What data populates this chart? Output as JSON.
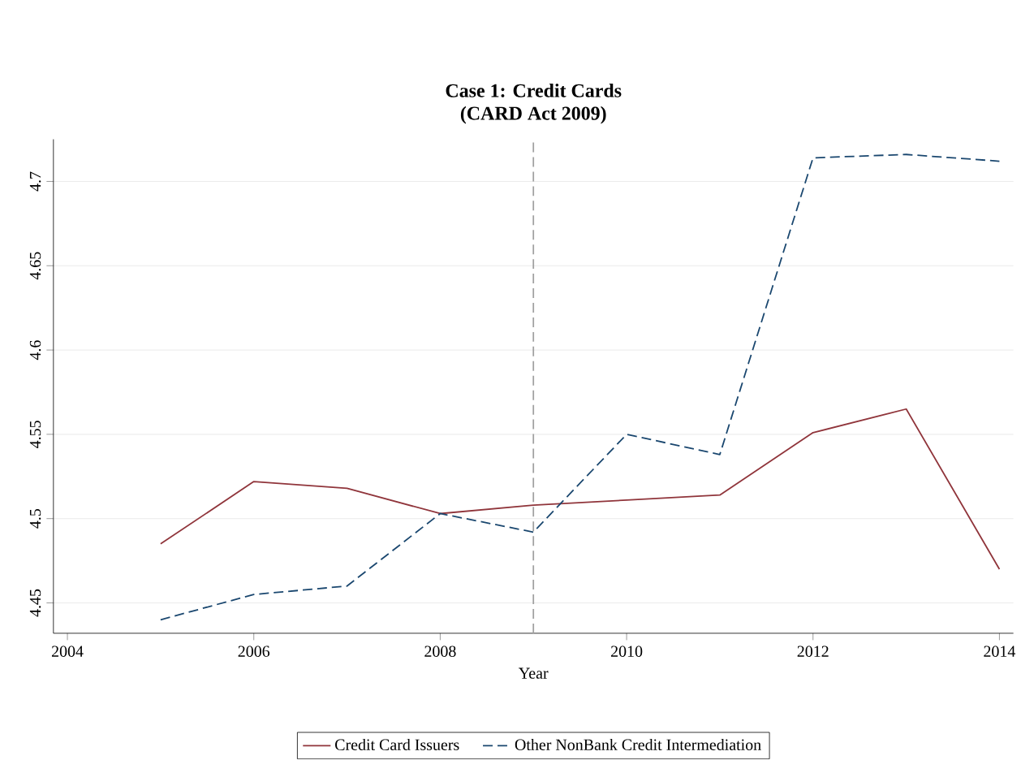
{
  "chart_data": {
    "type": "line",
    "title": "Case 1: Credit Cards",
    "subtitle": "(CARD Act 2009)",
    "xlabel": "Year",
    "x": [
      2005,
      2006,
      2007,
      2008,
      2009,
      2010,
      2011,
      2012,
      2013,
      2014
    ],
    "series": [
      {
        "name": "Credit Card Issuers",
        "color": "#90353b",
        "line_style": "solid",
        "values": [
          4.485,
          4.522,
          4.518,
          4.503,
          4.508,
          4.511,
          4.514,
          4.551,
          4.565,
          4.47
        ]
      },
      {
        "name": "Other NonBank Credit Intermediation",
        "color": "#1a476f",
        "line_style": "dashed",
        "values": [
          4.44,
          4.455,
          4.46,
          4.503,
          4.492,
          4.55,
          4.538,
          4.714,
          4.716,
          4.712
        ]
      }
    ],
    "xlim": [
      2003.85,
      2014.15
    ],
    "ylim": [
      4.432,
      4.725
    ],
    "xticks": [
      2004,
      2006,
      2008,
      2010,
      2012,
      2014
    ],
    "yticks": [
      4.45,
      4.5,
      4.55,
      4.6,
      4.65,
      4.7
    ],
    "ref_lines": [
      {
        "axis": "x",
        "value": 2009,
        "color": "#a0a0a0",
        "line_style": "dashed"
      }
    ],
    "grid": "y",
    "legend": "bottom",
    "marker": "none"
  }
}
